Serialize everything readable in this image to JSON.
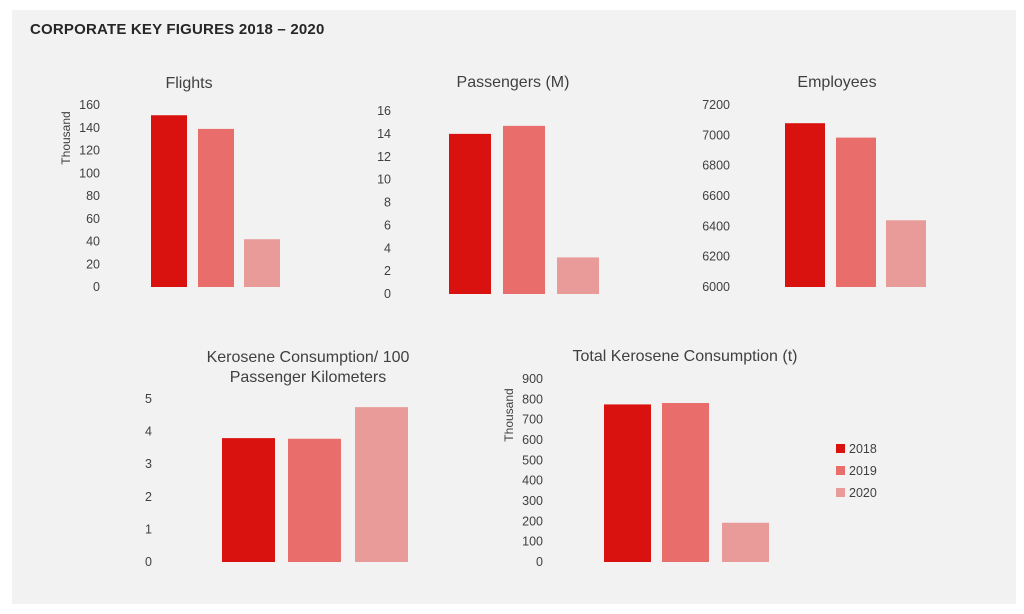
{
  "page": {
    "title": "CORPORATE KEY FIGURES 2018 – 2020"
  },
  "colors": {
    "2018": "#d9120f",
    "2019": "#e96d6a",
    "2020": "#e89b98",
    "panel": "#f2f2f2"
  },
  "legend": {
    "placement": "right",
    "entries": [
      "2018",
      "2019",
      "2020"
    ]
  },
  "chart_data": [
    {
      "id": "flights",
      "type": "bar",
      "title": "Flights",
      "ylabel": "Thousand",
      "categories": [
        "2018",
        "2019",
        "2020"
      ],
      "values": [
        151,
        139,
        42
      ],
      "ylim": [
        0,
        160
      ],
      "yticks": [
        0,
        20,
        40,
        60,
        80,
        100,
        120,
        140,
        160
      ]
    },
    {
      "id": "passengers",
      "type": "bar",
      "title": "Passengers (M)",
      "ylabel": "",
      "categories": [
        "2018",
        "2019",
        "2020"
      ],
      "values": [
        14.0,
        14.7,
        3.2
      ],
      "ylim": [
        0,
        16
      ],
      "yticks": [
        0,
        2,
        4,
        6,
        8,
        10,
        12,
        14,
        16
      ]
    },
    {
      "id": "employees",
      "type": "bar",
      "title": "Employees",
      "ylabel": "",
      "categories": [
        "2018",
        "2019",
        "2020"
      ],
      "values": [
        7080,
        6985,
        6440
      ],
      "ylim": [
        6000,
        7200
      ],
      "yticks": [
        6000,
        6200,
        6400,
        6600,
        6800,
        7000,
        7200
      ]
    },
    {
      "id": "kerosene-per-100pkm",
      "type": "bar",
      "title": "Kerosene Consumption/ 100 Passenger Kilometers",
      "ylabel": "",
      "categories": [
        "2018",
        "2019",
        "2020"
      ],
      "values": [
        3.8,
        3.78,
        4.75
      ],
      "ylim": [
        0,
        5
      ],
      "yticks": [
        0,
        1,
        2,
        3,
        4,
        5
      ]
    },
    {
      "id": "total-kerosene",
      "type": "bar",
      "title": "Total Kerosene Consumption (t)",
      "ylabel": "Thousand",
      "categories": [
        "2018",
        "2019",
        "2020"
      ],
      "values": [
        775,
        782,
        193
      ],
      "ylim": [
        0,
        900
      ],
      "yticks": [
        0,
        100,
        200,
        300,
        400,
        500,
        600,
        700,
        800,
        900
      ]
    }
  ]
}
